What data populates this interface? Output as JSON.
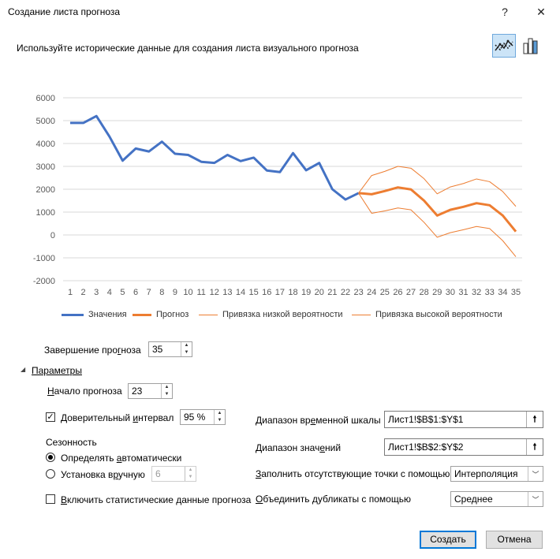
{
  "window": {
    "title": "Создание листа прогноза",
    "help_label": "?",
    "close_label": "✕"
  },
  "subtitle": "Используйте исторические данные для создания листа визуального прогноза",
  "chart_data": {
    "type": "line",
    "x": [
      1,
      2,
      3,
      4,
      5,
      6,
      7,
      8,
      9,
      10,
      11,
      12,
      13,
      14,
      15,
      16,
      17,
      18,
      19,
      20,
      21,
      22,
      23,
      24,
      25,
      26,
      27,
      28,
      29,
      30,
      31,
      32,
      33,
      34,
      35
    ],
    "ylim": [
      -2000,
      6000
    ],
    "yticks": [
      6000,
      5000,
      4000,
      3000,
      2000,
      1000,
      0,
      -1000,
      -2000
    ],
    "grid": true,
    "legend_position": "bottom",
    "series": [
      {
        "name": "Значения",
        "color": "#4472c4",
        "x": [
          1,
          2,
          3,
          4,
          5,
          6,
          7,
          8,
          9,
          10,
          11,
          12,
          13,
          14,
          15,
          16,
          17,
          18,
          19,
          20,
          21,
          22,
          23
        ],
        "values": [
          4900,
          4900,
          5200,
          4300,
          3250,
          3780,
          3650,
          4080,
          3550,
          3500,
          3200,
          3150,
          3500,
          3230,
          3380,
          2820,
          2750,
          3580,
          2830,
          3150,
          2000,
          1550,
          1830
        ]
      },
      {
        "name": "Прогноз",
        "color": "#ed7d31",
        "x": [
          23,
          24,
          25,
          26,
          27,
          28,
          29,
          30,
          31,
          32,
          33,
          34,
          35
        ],
        "values": [
          1830,
          1780,
          1920,
          2080,
          1990,
          1500,
          850,
          1100,
          1230,
          1390,
          1300,
          850,
          150
        ]
      },
      {
        "name": "Привязка низкой вероятности",
        "color": "#ed7d31",
        "x": [
          23,
          24,
          25,
          26,
          27,
          28,
          29,
          30,
          31,
          32,
          33,
          34,
          35
        ],
        "values": [
          1830,
          950,
          1050,
          1180,
          1100,
          550,
          -100,
          100,
          230,
          370,
          280,
          -250,
          -950
        ]
      },
      {
        "name": "Привязка высокой вероятности",
        "color": "#ed7d31",
        "x": [
          23,
          24,
          25,
          26,
          27,
          28,
          29,
          30,
          31,
          32,
          33,
          34,
          35
        ],
        "values": [
          1830,
          2600,
          2780,
          3000,
          2920,
          2460,
          1800,
          2100,
          2250,
          2450,
          2330,
          1900,
          1250
        ]
      }
    ]
  },
  "end_forecast": {
    "label_pre": "Завершение про",
    "label_u": "г",
    "label_post": "ноза",
    "value": "35"
  },
  "parameters": {
    "toggle_icon": "triangle-down",
    "label": "Параметры"
  },
  "start_forecast": {
    "label_u": "Н",
    "label_post": "ачало прогноза",
    "value": "23"
  },
  "confidence": {
    "label_pre": "Доверительный ",
    "label_u": "и",
    "label_post": "нтервал",
    "checked_mark": "✓",
    "value": "95 %"
  },
  "seasonality": {
    "title": "Сезонность",
    "auto_pre": "Определять ",
    "auto_u": "а",
    "auto_post": "втоматически",
    "manual_pre": "Установка в",
    "manual_u": "р",
    "manual_post": "учную",
    "manual_value": "6"
  },
  "stats": {
    "label_u": "В",
    "label_post": "ключить статистические данные прогноза"
  },
  "timeline": {
    "label_pre": "Диапазон вр",
    "label_u": "е",
    "label_post": "менной шкалы",
    "value": "Лист1!$B$1:$Y$1"
  },
  "values_range": {
    "label_pre": "Диапазон знач",
    "label_u": "е",
    "label_post": "ний",
    "value": "Лист1!$B$2:$Y$2"
  },
  "fill_missing": {
    "label_pre": "",
    "label_u": "З",
    "label_post": "аполнить отсутствующие точки с помощью",
    "value": "Интерполяция"
  },
  "aggregate": {
    "label_pre": "",
    "label_u": "О",
    "label_post": "бъединить дубликаты с помощью",
    "value": "Среднее"
  },
  "buttons": {
    "create": "Создать",
    "cancel": "Отмена"
  }
}
